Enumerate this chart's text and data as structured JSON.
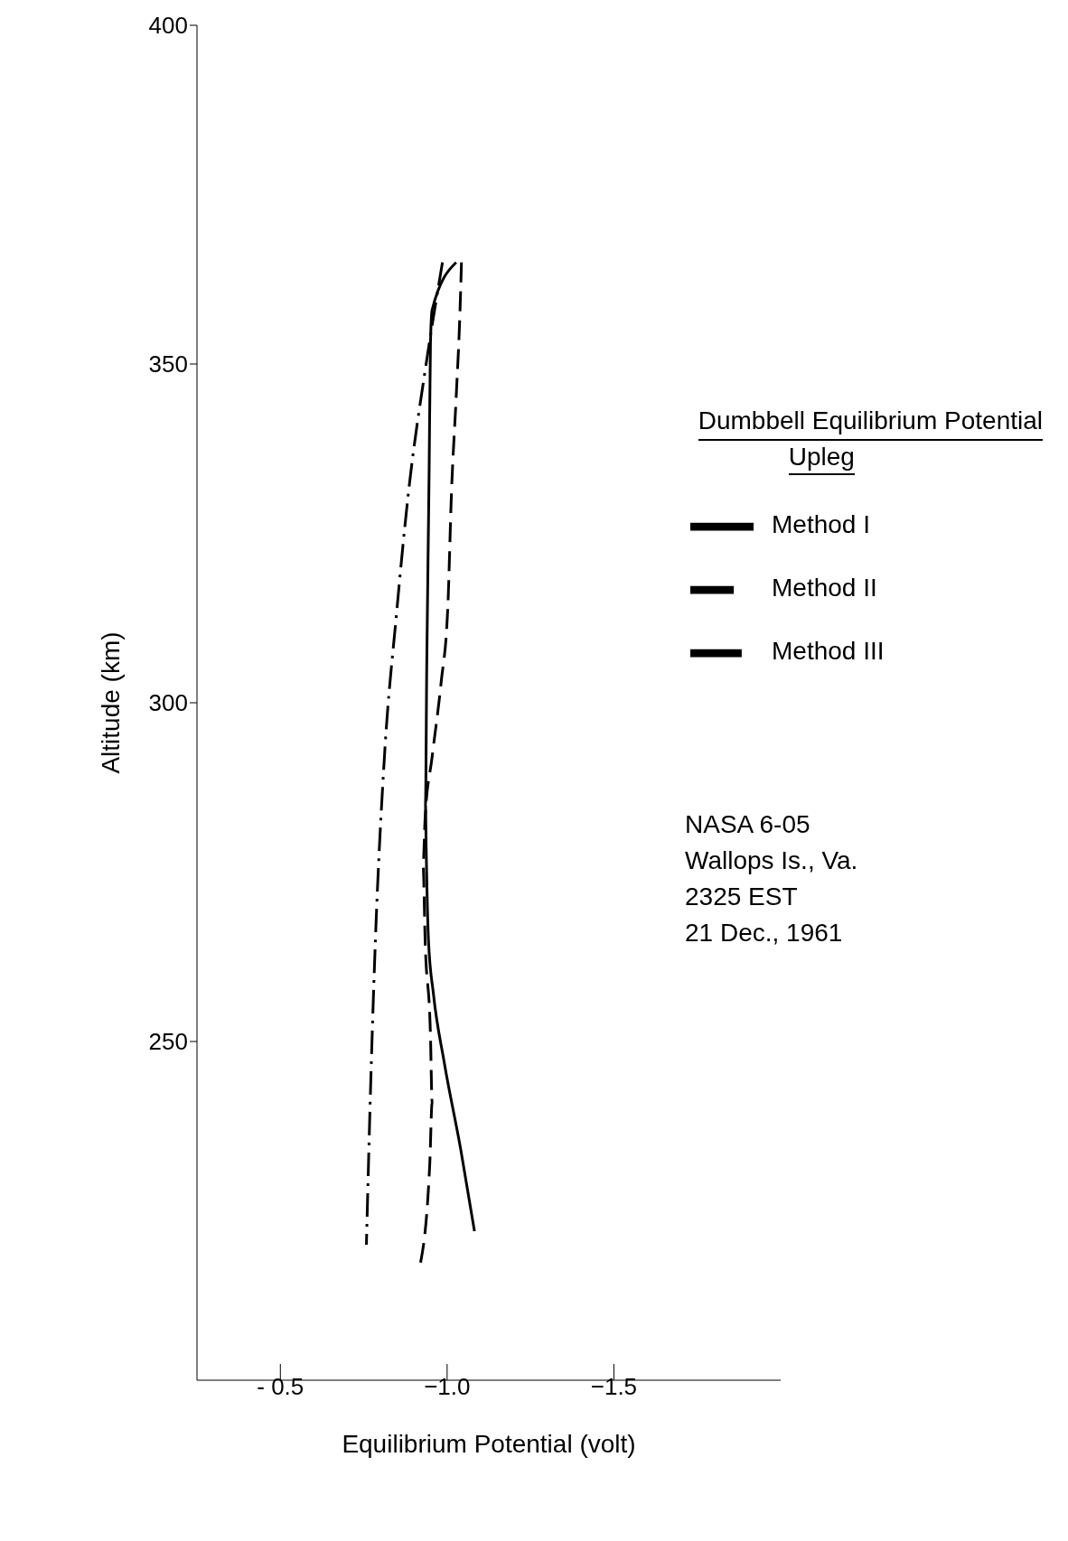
{
  "chart_data": {
    "type": "line",
    "xlabel": "Equilibrium Potential (volt)",
    "ylabel": "Altitude (km)",
    "legend_title": "Dumbbell Equilibrium Potential",
    "legend": "top right",
    "xlim": [
      -0.25,
      -2.0
    ],
    "xticks": [
      {
        "value": -0.5,
        "label": "- 0.5"
      },
      {
        "value": -1.0,
        "label": "−1.0"
      },
      {
        "value": -1.5,
        "label": "−1.5"
      }
    ],
    "ylim": [
      200,
      400
    ],
    "yticks": [
      250,
      300,
      350,
      400
    ],
    "grid": false,
    "marker": "none",
    "series": [
      {
        "name": "Method I",
        "color": "#000000",
        "line_style": "solid",
        "x": [
          -1.027,
          -0.955,
          -0.95,
          -0.946,
          -0.939,
          -0.935,
          -0.937,
          -0.944,
          -0.959,
          -0.991,
          -1.041,
          -1.082
        ],
        "values": [
          365,
          358,
          353,
          334,
          306,
          285,
          279,
          265,
          257,
          247,
          234,
          222
        ]
      },
      {
        "name": "Method II",
        "color": "#000000",
        "line_style": "dashed",
        "x": [
          -1.043,
          -1.038,
          -1.027,
          -1.013,
          -1.002,
          -0.982,
          -0.955,
          -0.934,
          -0.928,
          -0.934,
          -0.95,
          -0.955,
          -0.948,
          -0.919
        ],
        "values": [
          365,
          357,
          345,
          331,
          314,
          303,
          292,
          283,
          276,
          265,
          251,
          241,
          232,
          217
        ]
      },
      {
        "name": "Method III",
        "color": "#000000",
        "line_style": "dashdot",
        "x": [
          -0.986,
          -0.937,
          -0.884,
          -0.848,
          -0.812,
          -0.785,
          -0.771,
          -0.758
        ],
        "values": [
          365,
          350,
          331,
          313,
          292,
          265,
          244,
          220
        ]
      }
    ],
    "annotations": [
      "Upleg",
      "NASA 6-05",
      "Wallops Is., Va.",
      "2325 EST",
      "21 Dec., 1961"
    ]
  }
}
